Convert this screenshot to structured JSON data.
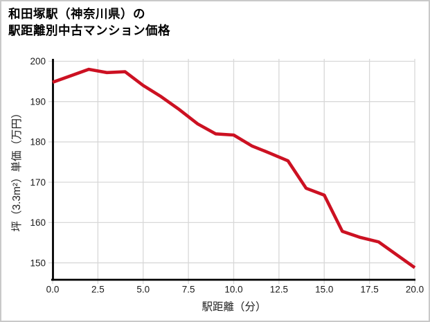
{
  "title": {
    "line1": "和田塚駅（神奈川県）の",
    "line2": "駅距離別中古マンション価格"
  },
  "chart_data": {
    "type": "line",
    "title": "和田塚駅（神奈川県）の駅距離別中古マンション価格",
    "xlabel": "駅距離（分）",
    "ylabel": "坪（3.3m²）単価（万円）",
    "x": [
      0,
      1,
      2,
      3,
      4,
      5,
      6,
      7,
      8,
      9,
      10,
      11,
      12,
      13,
      14,
      15,
      16,
      17,
      18,
      19,
      20
    ],
    "y": [
      194.8,
      196.4,
      198.0,
      197.2,
      197.4,
      194.0,
      191.2,
      188.0,
      184.5,
      182.0,
      181.7,
      179.0,
      177.2,
      175.3,
      168.5,
      166.8,
      157.8,
      156.3,
      155.2,
      152.0,
      148.8
    ],
    "xlim": [
      0,
      20
    ],
    "ylim": [
      145.8,
      200.6
    ],
    "x_ticks": [
      0,
      2.5,
      5,
      7.5,
      10,
      12.5,
      15,
      17.5,
      20
    ],
    "x_tick_labels": [
      "0.0",
      "2.5",
      "5.0",
      "7.5",
      "10.0",
      "12.5",
      "15.0",
      "17.5",
      "20.0"
    ],
    "y_ticks": [
      150,
      160,
      170,
      180,
      190,
      200
    ],
    "y_tick_labels": [
      "150",
      "160",
      "170",
      "180",
      "190",
      "200"
    ],
    "grid": true,
    "legend": "none",
    "line_color": "#cc1122",
    "grid_color": "#d8d8d8",
    "spine_color": "#000000",
    "tick_label_color": "#1a1a1a"
  }
}
